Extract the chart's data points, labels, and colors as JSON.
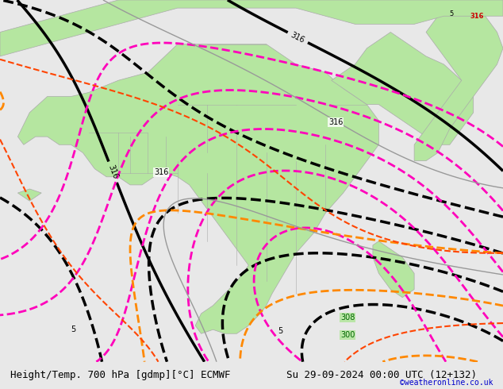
{
  "title_left": "Height/Temp. 700 hPa [gdmp][°C] ECMWF",
  "title_right": "Su 29-09-2024 00:00 UTC (12+132)",
  "copyright": "©weatheronline.co.uk",
  "bg_color": "#e8e8e8",
  "land_color": "#b5e6a0",
  "border_color": "#aaaaaa",
  "contour_black_color": "#000000",
  "contour_magenta_color": "#ff00bb",
  "contour_orange_color": "#ff8800",
  "contour_red_color": "#ff4400",
  "label_color_black": "#000000",
  "label_color_green": "#006600",
  "title_fontsize": 9,
  "copyright_color": "#0000cc",
  "figsize": [
    6.34,
    4.9
  ],
  "dpi": 100
}
